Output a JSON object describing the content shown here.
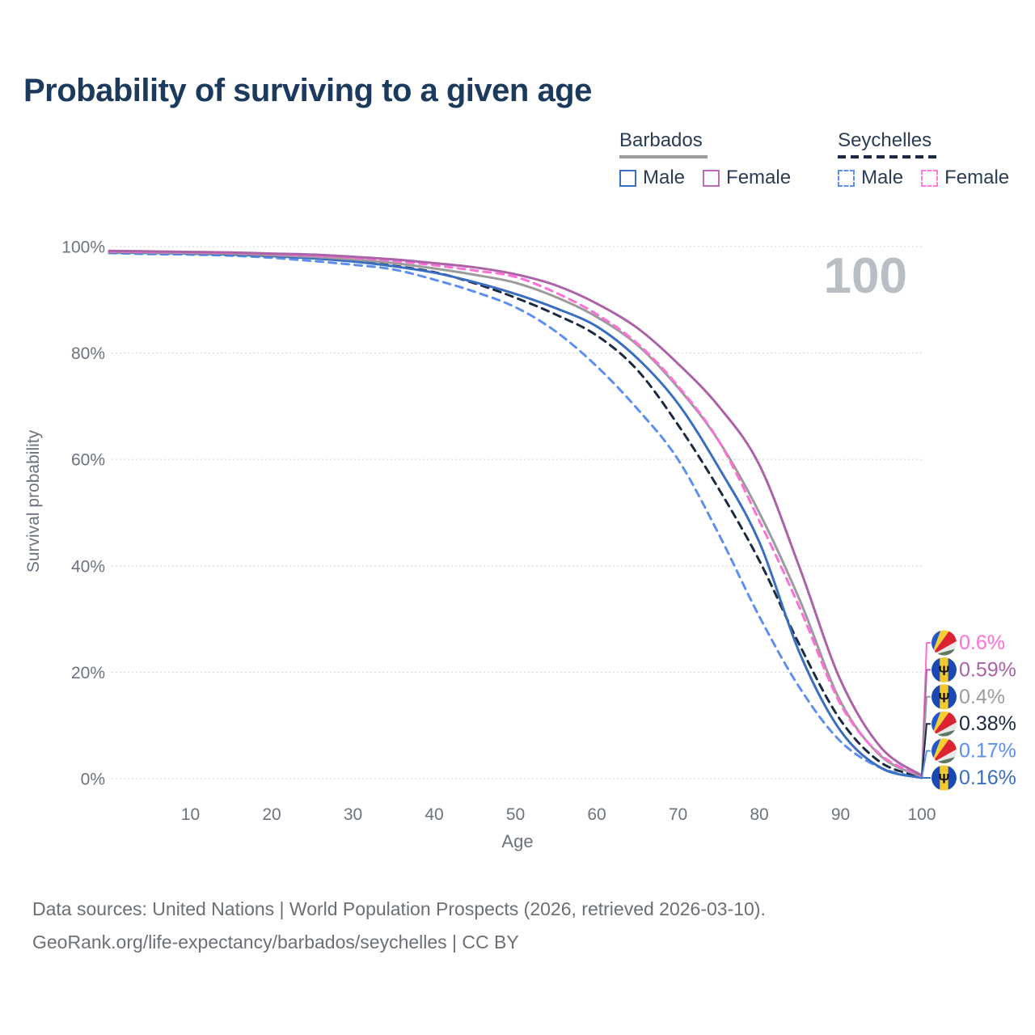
{
  "title": "Probability of surviving to a given age",
  "legend": {
    "groups": [
      {
        "label": "Barbados",
        "line_style": "solid",
        "underline_color": "#9b9b9b",
        "items": [
          {
            "label": "Male",
            "color": "#3a6ec0",
            "dashed": false
          },
          {
            "label": "Female",
            "color": "#c16cbb",
            "dashed": false
          }
        ]
      },
      {
        "label": "Seychelles",
        "line_style": "dashed",
        "underline_color": "#1b2a41",
        "items": [
          {
            "label": "Male",
            "color": "#5e8ff0",
            "dashed": true
          },
          {
            "label": "Female",
            "color": "#ff7ade",
            "dashed": true
          }
        ]
      }
    ]
  },
  "chart_data": {
    "type": "line",
    "title": "Probability of surviving to a given age",
    "xlabel": "Age",
    "ylabel": "Survival probability",
    "xlim": [
      0,
      100
    ],
    "ylim": [
      0,
      100
    ],
    "grid": true,
    "legend_position": "top-right",
    "age_watermark": "100",
    "x_ticks": [
      10,
      20,
      30,
      40,
      50,
      60,
      70,
      80,
      90,
      100
    ],
    "y_ticks": [
      {
        "label": "0%",
        "value": 0
      },
      {
        "label": "20%",
        "value": 20
      },
      {
        "label": "40%",
        "value": 40
      },
      {
        "label": "60%",
        "value": 60
      },
      {
        "label": "80%",
        "value": 80
      },
      {
        "label": "100%",
        "value": 100
      }
    ],
    "x": [
      0,
      5,
      10,
      15,
      20,
      25,
      30,
      35,
      40,
      45,
      50,
      55,
      60,
      65,
      70,
      75,
      80,
      85,
      90,
      95,
      100
    ],
    "series": [
      {
        "name": "Seychelles Male",
        "country": "Seychelles",
        "sex": "Male",
        "color": "#5e8ff0",
        "line_style": "dashed",
        "end_label": "0.17%",
        "values": [
          98.8,
          98.6,
          98.5,
          98.3,
          97.9,
          97.3,
          96.6,
          95.7,
          93.8,
          91.5,
          88.6,
          84.0,
          77.5,
          69.5,
          60.0,
          46.0,
          30.5,
          17.0,
          7.0,
          2.0,
          0.17
        ]
      },
      {
        "name": "Seychelles",
        "country": "Seychelles",
        "sex": "Both",
        "color": "#1b2a41",
        "line_style": "dashed",
        "end_label": "0.38%",
        "values": [
          99.0,
          98.9,
          98.8,
          98.6,
          98.3,
          97.9,
          97.3,
          96.4,
          95.2,
          93.1,
          90.4,
          87.2,
          83.3,
          76.8,
          66.5,
          54.5,
          41.0,
          25.0,
          11.0,
          3.0,
          0.38
        ]
      },
      {
        "name": "Barbados Male",
        "country": "Barbados",
        "sex": "Male",
        "color": "#3a6ec0",
        "line_style": "solid",
        "end_label": "0.16%",
        "values": [
          98.9,
          98.8,
          98.7,
          98.5,
          98.2,
          97.8,
          97.2,
          96.3,
          95.1,
          93.3,
          91.1,
          88.4,
          85.0,
          79.0,
          70.5,
          58.5,
          44.5,
          23.5,
          9.0,
          2.0,
          0.16
        ]
      },
      {
        "name": "Barbados",
        "country": "Barbados",
        "sex": "Both",
        "color": "#9b9b9b",
        "line_style": "solid",
        "end_label": "0.4%",
        "values": [
          99.0,
          98.9,
          98.8,
          98.7,
          98.4,
          98.1,
          97.6,
          96.9,
          95.9,
          94.7,
          93.2,
          90.5,
          86.8,
          81.5,
          73.5,
          63.5,
          50.0,
          33.5,
          14.5,
          4.2,
          0.4
        ]
      },
      {
        "name": "Seychelles Female",
        "country": "Seychelles",
        "sex": "Female",
        "color": "#ff6fd8",
        "line_style": "dashed",
        "end_label": "0.6%",
        "values": [
          99.1,
          99.0,
          98.9,
          98.8,
          98.6,
          98.3,
          97.9,
          97.3,
          96.5,
          95.5,
          94.3,
          91.3,
          87.3,
          81.8,
          73.8,
          63.5,
          48.5,
          32.0,
          14.0,
          4.4,
          0.6
        ]
      },
      {
        "name": "Barbados Female",
        "country": "Barbados",
        "sex": "Female",
        "color": "#ab62a6",
        "line_style": "solid",
        "end_label": "0.59%",
        "values": [
          99.2,
          99.1,
          99.0,
          98.9,
          98.7,
          98.5,
          98.1,
          97.6,
          96.9,
          96.1,
          94.8,
          92.7,
          89.3,
          84.7,
          78.0,
          70.0,
          59.0,
          39.5,
          18.5,
          5.8,
          0.59
        ]
      }
    ]
  },
  "end_labels": [
    {
      "series": "Seychelles Female",
      "label": "0.6%",
      "flag": "seychelles"
    },
    {
      "series": "Barbados Female",
      "label": "0.59%",
      "flag": "barbados"
    },
    {
      "series": "Barbados",
      "label": "0.4%",
      "flag": "barbados"
    },
    {
      "series": "Seychelles",
      "label": "0.38%",
      "flag": "seychelles"
    },
    {
      "series": "Seychelles Male",
      "label": "0.17%",
      "flag": "seychelles"
    },
    {
      "series": "Barbados Male",
      "label": "0.16%",
      "flag": "barbados"
    }
  ],
  "flags": {
    "barbados": {
      "blue": "#1a49b4",
      "gold": "#f6c92a",
      "trident": "#111111",
      "trident_glyph": "Ψ"
    },
    "seychelles": {
      "blue": "#2456c4",
      "yellow": "#f5ce33",
      "red": "#dc2332",
      "white": "#e9e9ea",
      "green": "#5d7a60"
    }
  },
  "footer": {
    "line1": "Data sources: United Nations | World Population Prospects (2026, retrieved 2026-03-10).",
    "line2": "GeoRank.org/life-expectancy/barbados/seychelles | CC BY"
  }
}
